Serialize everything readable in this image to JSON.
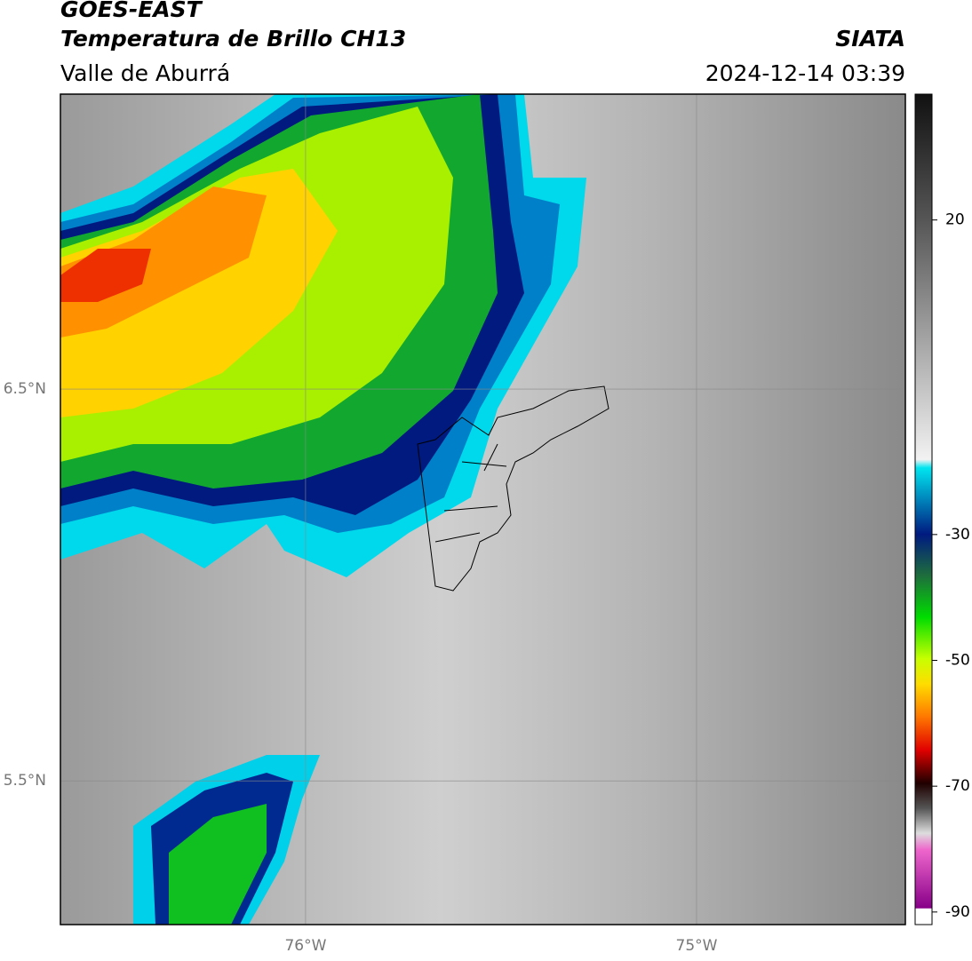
{
  "header": {
    "title": "GOES-EAST",
    "subtitle": "Temperatura de Brillo CH13",
    "region": "Valle de Aburrá",
    "source": "SIATA",
    "timestamp": "2024-12-14 03:39"
  },
  "map": {
    "xlim": [
      -76.627,
      -74.466
    ],
    "ylim": [
      5.133,
      7.253
    ],
    "xticks": [
      {
        "value": -76,
        "label": "76°W"
      },
      {
        "value": -75,
        "label": "75°W"
      }
    ],
    "yticks": [
      {
        "value": 6.5,
        "label": "6.5°N"
      },
      {
        "value": 5.5,
        "label": "5.5°N"
      }
    ],
    "grid": true
  },
  "colorbar": {
    "lim": [
      -92,
      40
    ],
    "ticks": [
      20,
      -30,
      -50,
      -70,
      -90
    ]
  }
}
